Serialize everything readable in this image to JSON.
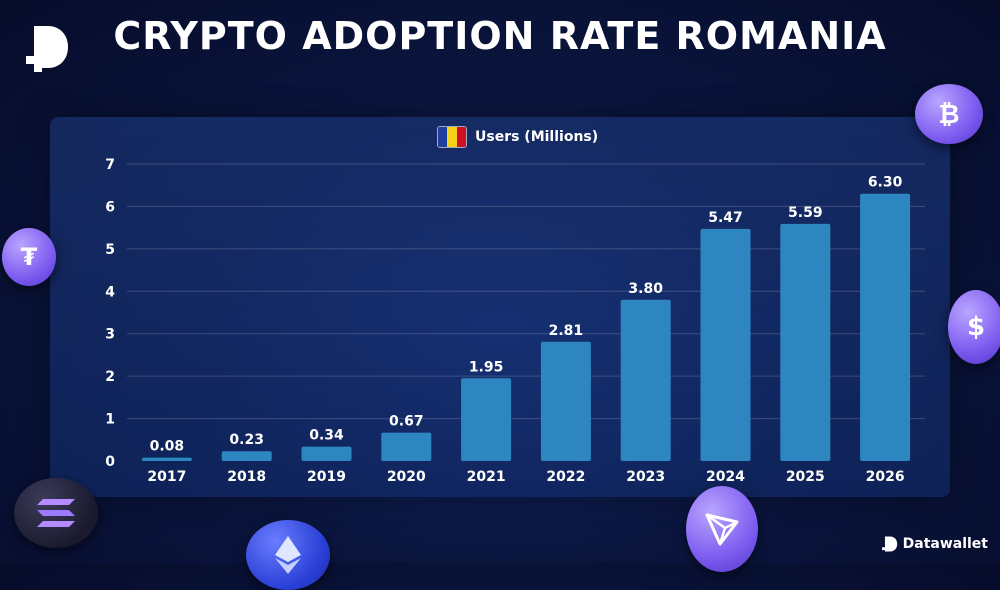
{
  "title": "CRYPTO ADOPTION RATE ROMANIA",
  "brand": "Datawallet",
  "colors": {
    "bar": "#2e86c1",
    "flag": [
      "#1f3f9e",
      "#f7d117",
      "#ce1126"
    ]
  },
  "icons": [
    "datawallet-logo-icon",
    "bitcoin-coin-icon",
    "tether-coin-icon",
    "usdc-coin-icon",
    "solana-coin-icon",
    "ethereum-coin-icon",
    "tron-coin-icon"
  ],
  "chart_data": {
    "type": "bar",
    "title": "",
    "xlabel": "",
    "ylabel": "",
    "legend": "Users (Millions)",
    "categories": [
      "2017",
      "2018",
      "2019",
      "2020",
      "2021",
      "2022",
      "2023",
      "2024",
      "2025",
      "2026"
    ],
    "values": [
      0.08,
      0.23,
      0.34,
      0.67,
      1.95,
      2.81,
      3.8,
      5.47,
      5.59,
      6.3
    ],
    "value_labels": [
      "0.08",
      "0.23",
      "0.34",
      "0.67",
      "1.95",
      "2.81",
      "3.80",
      "5.47",
      "5.59",
      "6.30"
    ],
    "yticks": [
      "0",
      "1",
      "2",
      "3",
      "4",
      "5",
      "6",
      "7"
    ],
    "ylim": [
      0,
      7
    ],
    "grid": true,
    "legend_position": "top-center"
  }
}
